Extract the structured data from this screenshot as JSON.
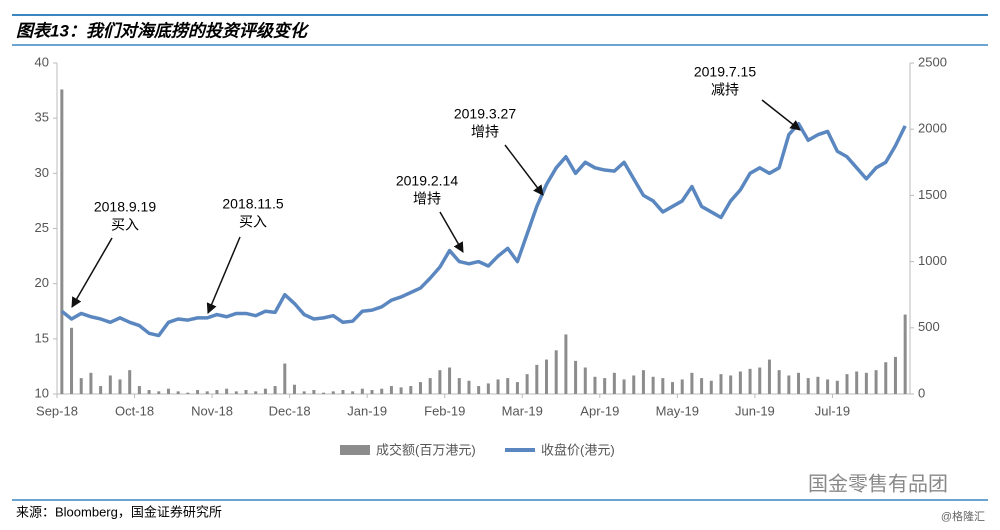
{
  "chart_data": {
    "type": "bar-line",
    "title": "图表13：我们对海底捞的投资评级变化",
    "source": "来源：Bloomberg，国金证券研究所",
    "watermark": "国金零售有品团",
    "credit": "@格隆汇",
    "categories": [
      "Sep-18",
      null,
      null,
      null,
      null,
      null,
      null,
      null,
      "Oct-18",
      null,
      null,
      null,
      null,
      null,
      null,
      null,
      "Nov-18",
      null,
      null,
      null,
      null,
      null,
      null,
      null,
      "Dec-18",
      null,
      null,
      null,
      null,
      null,
      null,
      null,
      "Jan-19",
      null,
      null,
      null,
      null,
      null,
      null,
      null,
      "Feb-19",
      null,
      null,
      null,
      null,
      null,
      null,
      null,
      "Mar-19",
      null,
      null,
      null,
      null,
      null,
      null,
      null,
      "Apr-19",
      null,
      null,
      null,
      null,
      null,
      null,
      null,
      "May-19",
      null,
      null,
      null,
      null,
      null,
      null,
      null,
      "Jun-19",
      null,
      null,
      null,
      null,
      null,
      null,
      null,
      "Jul-19",
      null,
      null,
      null,
      null,
      null,
      null,
      null
    ],
    "series": [
      {
        "name": "成交额(百万港元)",
        "color": "#8c8c8c",
        "axis": "y2",
        "kind": "bar",
        "values": [
          2300,
          500,
          120,
          160,
          60,
          140,
          110,
          180,
          60,
          30,
          20,
          40,
          20,
          10,
          30,
          20,
          30,
          40,
          20,
          30,
          20,
          40,
          60,
          230,
          70,
          20,
          30,
          10,
          20,
          30,
          20,
          40,
          30,
          40,
          60,
          50,
          60,
          90,
          120,
          180,
          200,
          120,
          100,
          60,
          80,
          110,
          120,
          90,
          150,
          220,
          260,
          330,
          450,
          250,
          200,
          130,
          120,
          160,
          110,
          140,
          180,
          130,
          120,
          90,
          110,
          160,
          120,
          100,
          150,
          140,
          170,
          190,
          200,
          260,
          180,
          140,
          160,
          120,
          130,
          110,
          100,
          150,
          170,
          160,
          180,
          240,
          280,
          600
        ]
      },
      {
        "name": "收盘价(港元)",
        "color": "#5b87c0",
        "axis": "y",
        "kind": "line",
        "values": [
          17.5,
          16.8,
          17.3,
          17.0,
          16.8,
          16.5,
          16.9,
          16.5,
          16.2,
          15.5,
          15.3,
          16.5,
          16.8,
          16.7,
          16.9,
          16.9,
          17.2,
          17.0,
          17.3,
          17.3,
          17.1,
          17.5,
          17.4,
          19.0,
          18.2,
          17.2,
          16.8,
          16.9,
          17.1,
          16.5,
          16.6,
          17.5,
          17.6,
          17.9,
          18.5,
          18.8,
          19.2,
          19.6,
          20.5,
          21.5,
          23.0,
          22.0,
          21.8,
          22.0,
          21.6,
          22.5,
          23.2,
          22.0,
          24.5,
          27.0,
          29.0,
          30.5,
          31.5,
          30.0,
          31.0,
          30.5,
          30.3,
          30.2,
          31.0,
          29.5,
          28.0,
          27.5,
          26.5,
          27.0,
          27.5,
          28.8,
          27.0,
          26.5,
          26.0,
          27.5,
          28.5,
          30.0,
          30.5,
          30.0,
          30.5,
          33.5,
          34.5,
          33.0,
          33.5,
          33.8,
          32.0,
          31.5,
          30.5,
          29.5,
          30.5,
          31.0,
          32.5,
          34.3
        ]
      }
    ],
    "ylim": [
      10,
      40
    ],
    "yticks": [
      10,
      15,
      20,
      25,
      30,
      35,
      40
    ],
    "y2lim": [
      0,
      2500
    ],
    "y2ticks": [
      0,
      500,
      1000,
      1500,
      2000,
      2500
    ],
    "legend": "bottom",
    "annotations": [
      {
        "date": "2018.9.19",
        "rating": "买入"
      },
      {
        "date": "2018.11.5",
        "rating": "买入"
      },
      {
        "date": "2019.2.14",
        "rating": "增持"
      },
      {
        "date": "2019.3.27",
        "rating": "增持"
      },
      {
        "date": "2019.7.15",
        "rating": "减持"
      }
    ]
  }
}
